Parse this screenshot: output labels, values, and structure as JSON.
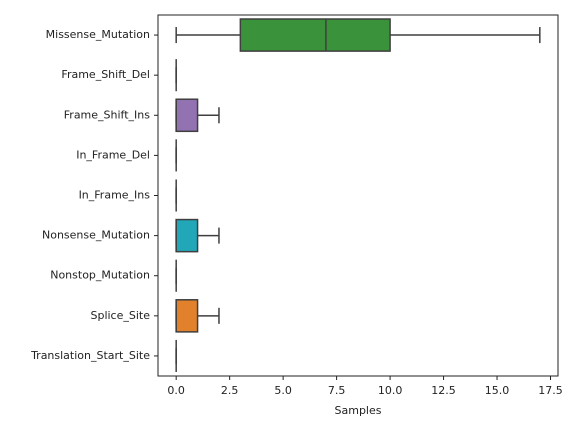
{
  "chart_data": {
    "type": "boxplot",
    "orientation": "horizontal",
    "x_label": "Samples",
    "categories": [
      "Missense_Mutation",
      "Frame_Shift_Del",
      "Frame_Shift_Ins",
      "In_Frame_Del",
      "In_Frame_Ins",
      "Nonsense_Mutation",
      "Nonstop_Mutation",
      "Splice_Site",
      "Translation_Start_Site"
    ],
    "min": [
      0,
      0,
      0,
      0,
      0,
      0,
      0,
      0,
      0
    ],
    "q1": [
      3,
      0,
      0,
      0,
      0,
      0,
      0,
      0,
      0
    ],
    "median": [
      7,
      0,
      0,
      0,
      0,
      0,
      0,
      0,
      0
    ],
    "q3": [
      10,
      0,
      1,
      0,
      0,
      1,
      0,
      1,
      0
    ],
    "max": [
      17,
      0,
      2,
      0,
      0,
      2,
      0,
      2,
      0
    ],
    "colors": [
      "#3a923a",
      null,
      "#9372b2",
      null,
      null,
      "#22a7b8",
      null,
      "#e1812c",
      null
    ],
    "xlim": [
      -0.85,
      17.85
    ],
    "xticks": [
      {
        "value": 0,
        "label": "0.0"
      },
      {
        "value": 2.5,
        "label": "2.5"
      },
      {
        "value": 5,
        "label": "5.0"
      },
      {
        "value": 7.5,
        "label": "7.5"
      },
      {
        "value": 10,
        "label": "10.0"
      },
      {
        "value": 12.5,
        "label": "12.5"
      },
      {
        "value": 15,
        "label": "15.0"
      },
      {
        "value": 17.5,
        "label": "17.5"
      }
    ]
  }
}
